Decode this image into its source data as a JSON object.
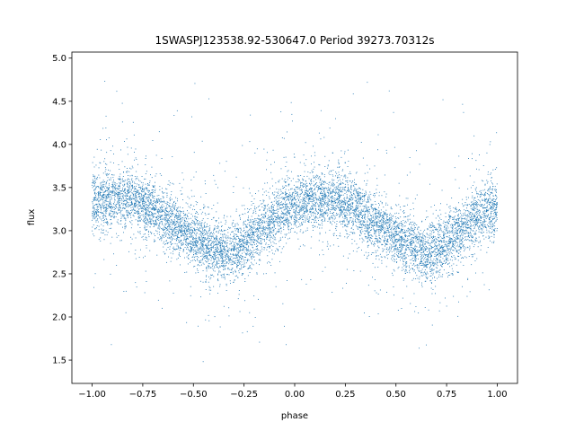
{
  "chart_data": {
    "type": "scatter",
    "title": "1SWASPJ123538.92-530647.0 Period 39273.70312s",
    "xlabel": "phase",
    "ylabel": "flux",
    "xlim": [
      -1.1,
      1.1
    ],
    "ylim": [
      1.23,
      5.07
    ],
    "xticks": [
      -1.0,
      -0.75,
      -0.5,
      -0.25,
      0.0,
      0.25,
      0.5,
      0.75,
      1.0
    ],
    "xtick_labels": [
      "−1.00",
      "−0.75",
      "−0.50",
      "−0.25",
      "0.00",
      "0.25",
      "0.50",
      "0.75",
      "1.00"
    ],
    "yticks": [
      1.5,
      2.0,
      2.5,
      3.0,
      3.5,
      4.0,
      4.5,
      5.0
    ],
    "ytick_labels": [
      "1.5",
      "2.0",
      "2.5",
      "3.0",
      "3.5",
      "4.0",
      "4.5",
      "5.0"
    ],
    "grid": false,
    "legend": "none",
    "point_color": "#1f77b4",
    "series": [
      {
        "phase": [
          -1.0,
          -0.9,
          -0.8,
          -0.7,
          -0.6,
          -0.5,
          -0.4,
          -0.35,
          -0.3,
          -0.2,
          -0.1,
          0.0,
          0.1,
          0.2,
          0.3,
          0.4,
          0.5,
          0.6,
          0.65,
          0.7,
          0.8,
          0.9,
          1.0
        ],
        "flux": [
          3.33,
          3.38,
          3.36,
          3.25,
          3.08,
          2.92,
          2.78,
          2.75,
          2.78,
          2.95,
          3.15,
          3.3,
          3.38,
          3.36,
          3.25,
          3.08,
          2.92,
          2.78,
          2.75,
          2.78,
          2.95,
          3.15,
          3.3
        ]
      }
    ]
  }
}
